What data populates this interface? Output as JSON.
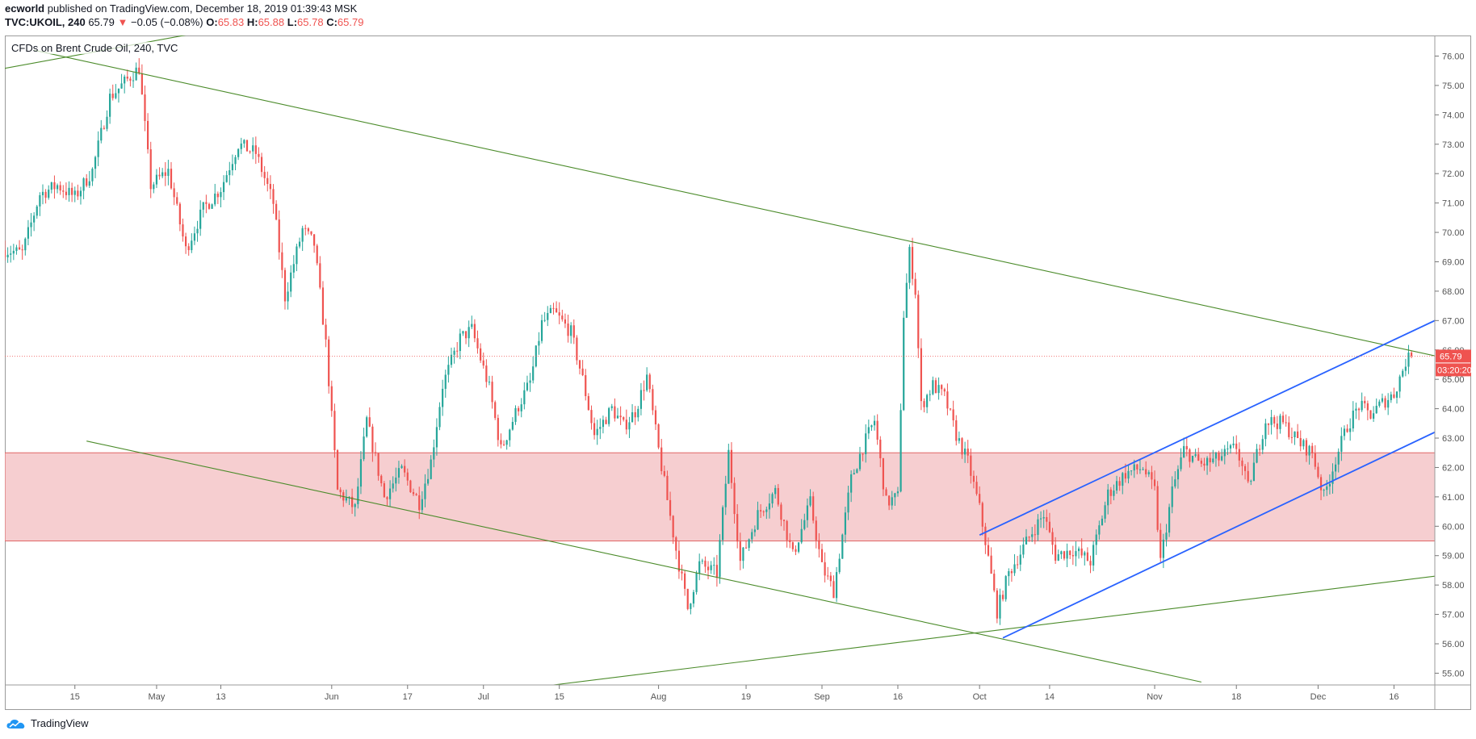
{
  "header": {
    "publisher": "ecworld",
    "published_text": "published on TradingView.com, December 18, 2019 01:39:43 MSK",
    "symbol": "TVC:UKOIL, 240",
    "last": "65.79",
    "change": "−0.05 (−0.08%)",
    "o_label": "O:",
    "o_value": "65.83",
    "h_label": "H:",
    "h_value": "65.88",
    "l_label": "L:",
    "l_value": "65.78",
    "c_label": "C:",
    "c_value": "65.79"
  },
  "legend": "CFDs on Brent Crude Oil, 240, TVC",
  "footer": {
    "brand": "TradingView"
  },
  "colors": {
    "up": "#26a69a",
    "down": "#ef5350",
    "trend_green": "#4b8b2a",
    "channel_blue": "#2962ff",
    "zone_fill": "#f4c6c8",
    "zone_border": "#e06666"
  },
  "chart_data": {
    "type": "candlestick",
    "title": "CFDs on Brent Crude Oil, 240, TVC",
    "ylim": [
      54.6,
      76.7
    ],
    "xlim": [
      0,
      245
    ],
    "y_ticks": [
      "55.00",
      "56.00",
      "57.00",
      "58.00",
      "59.00",
      "60.00",
      "61.00",
      "62.00",
      "63.00",
      "64.00",
      "65.00",
      "66.00",
      "67.00",
      "68.00",
      "69.00",
      "70.00",
      "71.00",
      "72.00",
      "73.00",
      "74.00",
      "75.00",
      "76.00"
    ],
    "x_ticks": [
      {
        "label": "15",
        "t": 12
      },
      {
        "label": "May",
        "t": 26
      },
      {
        "label": "13",
        "t": 37
      },
      {
        "label": "Jun",
        "t": 56
      },
      {
        "label": "17",
        "t": 69
      },
      {
        "label": "Jul",
        "t": 82
      },
      {
        "label": "15",
        "t": 95
      },
      {
        "label": "Aug",
        "t": 112
      },
      {
        "label": "19",
        "t": 127
      },
      {
        "label": "Sep",
        "t": 140
      },
      {
        "label": "16",
        "t": 153
      },
      {
        "label": "Oct",
        "t": 167
      },
      {
        "label": "14",
        "t": 179
      },
      {
        "label": "Nov",
        "t": 197
      },
      {
        "label": "18",
        "t": 211
      },
      {
        "label": "Dec",
        "t": 225
      },
      {
        "label": "16",
        "t": 238
      }
    ],
    "last_price": {
      "value": 65.79,
      "label": "65.79",
      "countdown": "03:20:20"
    },
    "gridlines": false,
    "zone": {
      "low": 59.5,
      "high": 62.5
    },
    "trend_lines": [
      {
        "color": "green",
        "points": [
          [
            -5,
            75.4
          ],
          [
            58,
            77.7
          ]
        ]
      },
      {
        "color": "green",
        "points": [
          [
            5,
            76.2
          ],
          [
            245,
            65.8
          ]
        ]
      },
      {
        "color": "green",
        "points": [
          [
            14,
            62.9
          ],
          [
            205,
            54.7
          ]
        ]
      },
      {
        "color": "green",
        "points": [
          [
            94,
            54.6
          ],
          [
            245,
            58.3
          ]
        ]
      },
      {
        "color": "blue",
        "points": [
          [
            167,
            59.7
          ],
          [
            245,
            67.0
          ]
        ]
      },
      {
        "color": "blue",
        "points": [
          [
            171,
            56.2
          ],
          [
            245,
            63.2
          ]
        ]
      }
    ],
    "anchors": [
      [
        0,
        69.4
      ],
      [
        3,
        69.3
      ],
      [
        6,
        71.3
      ],
      [
        9,
        71.6
      ],
      [
        12,
        71.2
      ],
      [
        15,
        72.1
      ],
      [
        18,
        74.6
      ],
      [
        21,
        75.2
      ],
      [
        23,
        75.6
      ],
      [
        25,
        71.6
      ],
      [
        28,
        72.1
      ],
      [
        31,
        69.4
      ],
      [
        34,
        70.8
      ],
      [
        37,
        71.5
      ],
      [
        40,
        73.0
      ],
      [
        43,
        72.7
      ],
      [
        46,
        71.0
      ],
      [
        48,
        67.8
      ],
      [
        51,
        70.1
      ],
      [
        53,
        69.6
      ],
      [
        55,
        66.2
      ],
      [
        57,
        61.2
      ],
      [
        60,
        60.6
      ],
      [
        62,
        63.6
      ],
      [
        65,
        61.0
      ],
      [
        68,
        61.9
      ],
      [
        71,
        60.8
      ],
      [
        73,
        62.2
      ],
      [
        75,
        64.8
      ],
      [
        78,
        66.4
      ],
      [
        80,
        66.7
      ],
      [
        83,
        64.7
      ],
      [
        85,
        62.6
      ],
      [
        88,
        64.1
      ],
      [
        90,
        64.9
      ],
      [
        92,
        66.9
      ],
      [
        94,
        67.3
      ],
      [
        97,
        66.6
      ],
      [
        99,
        65.0
      ],
      [
        101,
        63.1
      ],
      [
        104,
        64.0
      ],
      [
        106,
        63.4
      ],
      [
        108,
        63.9
      ],
      [
        110,
        65.1
      ],
      [
        112,
        62.6
      ],
      [
        115,
        59.2
      ],
      [
        117,
        57.2
      ],
      [
        119,
        58.7
      ],
      [
        122,
        58.4
      ],
      [
        124,
        62.5
      ],
      [
        126,
        58.8
      ],
      [
        129,
        60.4
      ],
      [
        132,
        61.2
      ],
      [
        135,
        59.0
      ],
      [
        138,
        60.8
      ],
      [
        140,
        58.6
      ],
      [
        142,
        57.8
      ],
      [
        145,
        61.6
      ],
      [
        147,
        62.7
      ],
      [
        149,
        63.6
      ],
      [
        151,
        60.8
      ],
      [
        153,
        61.0
      ],
      [
        154,
        67.2
      ],
      [
        155,
        69.3
      ],
      [
        156,
        68.0
      ],
      [
        157,
        64.1
      ],
      [
        159,
        64.8
      ],
      [
        161,
        64.4
      ],
      [
        163,
        63.1
      ],
      [
        165,
        62.2
      ],
      [
        167,
        60.6
      ],
      [
        168,
        59.5
      ],
      [
        170,
        57.1
      ],
      [
        172,
        58.4
      ],
      [
        174,
        59.1
      ],
      [
        176,
        59.8
      ],
      [
        178,
        60.4
      ],
      [
        180,
        59.0
      ],
      [
        183,
        59.2
      ],
      [
        186,
        58.8
      ],
      [
        189,
        61.1
      ],
      [
        192,
        61.8
      ],
      [
        195,
        62.0
      ],
      [
        197,
        61.2
      ],
      [
        198,
        58.8
      ],
      [
        200,
        61.2
      ],
      [
        202,
        62.6
      ],
      [
        205,
        62.1
      ],
      [
        208,
        62.3
      ],
      [
        211,
        62.7
      ],
      [
        213,
        61.3
      ],
      [
        216,
        63.6
      ],
      [
        219,
        63.5
      ],
      [
        222,
        62.8
      ],
      [
        224,
        62.5
      ],
      [
        226,
        61.0
      ],
      [
        228,
        62.3
      ],
      [
        230,
        63.4
      ],
      [
        232,
        64.1
      ],
      [
        234,
        63.8
      ],
      [
        236,
        64.2
      ],
      [
        238,
        64.5
      ],
      [
        240,
        65.6
      ],
      [
        241,
        65.79
      ]
    ]
  }
}
